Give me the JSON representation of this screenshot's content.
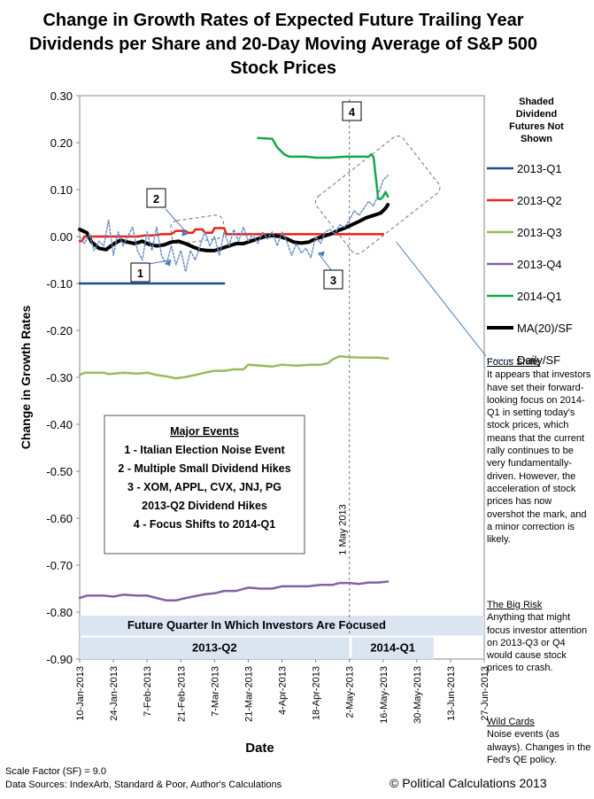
{
  "chart_data": {
    "type": "line",
    "title": "Change in Growth Rates of Expected Future Trailing Year Dividends per Share and 20-Day Moving Average of S&P 500 Stock Prices",
    "xlabel": "Date",
    "ylabel": "Change in Growth Rates",
    "ylim": [
      -0.9,
      0.3
    ],
    "xlim_day": [
      0,
      168
    ],
    "yticks": [
      0.3,
      0.2,
      0.1,
      0.0,
      -0.1,
      -0.2,
      -0.3,
      -0.4,
      -0.5,
      -0.6,
      -0.7,
      -0.8,
      -0.9
    ],
    "ytick_labels": [
      "0.30",
      "0.20",
      "0.10",
      "0.00",
      "-0.10",
      "-0.20",
      "-0.30",
      "-0.40",
      "-0.50",
      "-0.60",
      "-0.70",
      "-0.80",
      "-0.90"
    ],
    "xticks": [
      {
        "day": 0,
        "label": "10-Jan-2013"
      },
      {
        "day": 14,
        "label": "24-Jan-2013"
      },
      {
        "day": 28,
        "label": "7-Feb-2013"
      },
      {
        "day": 42,
        "label": "21-Feb-2013"
      },
      {
        "day": 56,
        "label": "7-Mar-2013"
      },
      {
        "day": 70,
        "label": "21-Mar-2013"
      },
      {
        "day": 84,
        "label": "4-Apr-2013"
      },
      {
        "day": 98,
        "label": "18-Apr-2013"
      },
      {
        "day": 112,
        "label": "2-May-2013"
      },
      {
        "day": 126,
        "label": "16-May-2013"
      },
      {
        "day": 140,
        "label": "30-May-2013"
      },
      {
        "day": 154,
        "label": "13-Jun-2013"
      },
      {
        "day": 168,
        "label": "27-Jun-2013"
      }
    ],
    "series": [
      {
        "name": "2013-Q1",
        "color": "#1f4e8c",
        "width": 2.5,
        "dash": "",
        "points": [
          [
            0,
            -0.1
          ],
          [
            60,
            -0.1
          ]
        ]
      },
      {
        "name": "2013-Q2",
        "color": "#e8231a",
        "width": 2.5,
        "dash": "",
        "points": [
          [
            0,
            -0.01
          ],
          [
            1,
            -0.01
          ],
          [
            2,
            0.0
          ],
          [
            24,
            0.0
          ],
          [
            27,
            0.002
          ],
          [
            30,
            0.002
          ],
          [
            34,
            0.005
          ],
          [
            38,
            0.005
          ],
          [
            40,
            0.012
          ],
          [
            44,
            0.012
          ],
          [
            45,
            0.008
          ],
          [
            47,
            0.008
          ],
          [
            48,
            0.015
          ],
          [
            51,
            0.015
          ],
          [
            52,
            0.008
          ],
          [
            55,
            0.008
          ],
          [
            56,
            0.018
          ],
          [
            60,
            0.018
          ],
          [
            61,
            0.005
          ],
          [
            126,
            0.005
          ]
        ]
      },
      {
        "name": "2013-Q3",
        "color": "#9bbb59",
        "width": 2.5,
        "dash": "",
        "points": [
          [
            0,
            -0.295
          ],
          [
            2,
            -0.29
          ],
          [
            10,
            -0.29
          ],
          [
            12,
            -0.293
          ],
          [
            18,
            -0.29
          ],
          [
            24,
            -0.292
          ],
          [
            28,
            -0.29
          ],
          [
            32,
            -0.295
          ],
          [
            36,
            -0.298
          ],
          [
            40,
            -0.302
          ],
          [
            44,
            -0.299
          ],
          [
            48,
            -0.295
          ],
          [
            52,
            -0.29
          ],
          [
            56,
            -0.286
          ],
          [
            60,
            -0.286
          ],
          [
            64,
            -0.283
          ],
          [
            68,
            -0.283
          ],
          [
            70,
            -0.273
          ],
          [
            75,
            -0.275
          ],
          [
            80,
            -0.277
          ],
          [
            84,
            -0.273
          ],
          [
            90,
            -0.275
          ],
          [
            96,
            -0.273
          ],
          [
            100,
            -0.273
          ],
          [
            103,
            -0.27
          ],
          [
            105,
            -0.262
          ],
          [
            108,
            -0.255
          ],
          [
            112,
            -0.257
          ],
          [
            118,
            -0.258
          ],
          [
            124,
            -0.258
          ],
          [
            128,
            -0.26
          ]
        ]
      },
      {
        "name": "2013-Q4",
        "color": "#8064a2",
        "width": 2.5,
        "dash": "",
        "points": [
          [
            0,
            -0.77
          ],
          [
            3,
            -0.765
          ],
          [
            10,
            -0.765
          ],
          [
            14,
            -0.767
          ],
          [
            18,
            -0.763
          ],
          [
            24,
            -0.765
          ],
          [
            28,
            -0.765
          ],
          [
            32,
            -0.77
          ],
          [
            36,
            -0.775
          ],
          [
            40,
            -0.775
          ],
          [
            44,
            -0.77
          ],
          [
            48,
            -0.766
          ],
          [
            52,
            -0.762
          ],
          [
            56,
            -0.76
          ],
          [
            60,
            -0.755
          ],
          [
            65,
            -0.755
          ],
          [
            70,
            -0.748
          ],
          [
            75,
            -0.75
          ],
          [
            80,
            -0.75
          ],
          [
            84,
            -0.745
          ],
          [
            90,
            -0.745
          ],
          [
            95,
            -0.745
          ],
          [
            100,
            -0.742
          ],
          [
            105,
            -0.742
          ],
          [
            108,
            -0.738
          ],
          [
            112,
            -0.738
          ],
          [
            116,
            -0.74
          ],
          [
            120,
            -0.737
          ],
          [
            124,
            -0.737
          ],
          [
            128,
            -0.735
          ]
        ]
      },
      {
        "name": "2014-Q1",
        "color": "#14a84d",
        "width": 2.5,
        "dash": "",
        "points": [
          [
            74,
            0.21
          ],
          [
            80,
            0.208
          ],
          [
            82,
            0.19
          ],
          [
            85,
            0.175
          ],
          [
            87,
            0.17
          ],
          [
            94,
            0.17
          ],
          [
            98,
            0.168
          ],
          [
            104,
            0.168
          ],
          [
            110,
            0.17
          ],
          [
            116,
            0.17
          ],
          [
            120,
            0.17
          ],
          [
            121,
            0.175
          ],
          [
            122,
            0.17
          ],
          [
            124,
            0.08
          ],
          [
            125,
            0.08
          ],
          [
            126,
            0.085
          ],
          [
            127,
            0.095
          ],
          [
            128,
            0.085
          ]
        ]
      },
      {
        "name": "MA(20)/SF",
        "color": "#000000",
        "width": 4,
        "dash": "",
        "points": [
          [
            0,
            0.015
          ],
          [
            3,
            0.008
          ],
          [
            5,
            -0.012
          ],
          [
            8,
            -0.025
          ],
          [
            11,
            -0.028
          ],
          [
            14,
            -0.016
          ],
          [
            17,
            -0.008
          ],
          [
            20,
            -0.012
          ],
          [
            23,
            -0.015
          ],
          [
            26,
            -0.01
          ],
          [
            29,
            -0.017
          ],
          [
            32,
            -0.02
          ],
          [
            35,
            -0.018
          ],
          [
            38,
            -0.012
          ],
          [
            41,
            -0.01
          ],
          [
            44,
            -0.015
          ],
          [
            47,
            -0.022
          ],
          [
            50,
            -0.028
          ],
          [
            53,
            -0.03
          ],
          [
            56,
            -0.03
          ],
          [
            59,
            -0.025
          ],
          [
            62,
            -0.02
          ],
          [
            65,
            -0.015
          ],
          [
            68,
            -0.015
          ],
          [
            71,
            -0.01
          ],
          [
            74,
            -0.005
          ],
          [
            77,
            0.0
          ],
          [
            80,
            0.002
          ],
          [
            83,
            0.0
          ],
          [
            86,
            -0.005
          ],
          [
            89,
            -0.012
          ],
          [
            92,
            -0.014
          ],
          [
            95,
            -0.012
          ],
          [
            98,
            -0.005
          ],
          [
            101,
            0.0
          ],
          [
            104,
            0.005
          ],
          [
            107,
            0.012
          ],
          [
            110,
            0.018
          ],
          [
            113,
            0.025
          ],
          [
            116,
            0.032
          ],
          [
            119,
            0.04
          ],
          [
            122,
            0.045
          ],
          [
            125,
            0.05
          ],
          [
            127,
            0.06
          ],
          [
            128,
            0.068
          ]
        ]
      },
      {
        "name": "Daily/SF",
        "color": "#6b8fc4",
        "width": 1.5,
        "dash": "2,2",
        "points": [
          [
            0,
            0.0
          ],
          [
            2,
            -0.015
          ],
          [
            4,
            0.005
          ],
          [
            6,
            -0.03
          ],
          [
            8,
            -0.01
          ],
          [
            10,
            -0.02
          ],
          [
            12,
            0.035
          ],
          [
            14,
            -0.04
          ],
          [
            16,
            0.01
          ],
          [
            18,
            -0.02
          ],
          [
            20,
            0.0
          ],
          [
            22,
            0.02
          ],
          [
            24,
            -0.03
          ],
          [
            26,
            -0.05
          ],
          [
            28,
            0.01
          ],
          [
            30,
            -0.03
          ],
          [
            32,
            0.02
          ],
          [
            34,
            -0.04
          ],
          [
            36,
            -0.06
          ],
          [
            38,
            -0.02
          ],
          [
            40,
            -0.06
          ],
          [
            42,
            -0.03
          ],
          [
            44,
            -0.075
          ],
          [
            46,
            -0.03
          ],
          [
            48,
            -0.05
          ],
          [
            50,
            -0.02
          ],
          [
            52,
            0.01
          ],
          [
            54,
            -0.02
          ],
          [
            56,
            0.0
          ],
          [
            58,
            -0.04
          ],
          [
            60,
            0.01
          ],
          [
            62,
            -0.02
          ],
          [
            64,
            0.015
          ],
          [
            66,
            -0.01
          ],
          [
            68,
            0.02
          ],
          [
            70,
            -0.01
          ],
          [
            72,
            0.005
          ],
          [
            74,
            -0.015
          ],
          [
            76,
            0.01
          ],
          [
            78,
            -0.005
          ],
          [
            80,
            0.01
          ],
          [
            82,
            -0.02
          ],
          [
            84,
            0.01
          ],
          [
            86,
            -0.01
          ],
          [
            88,
            -0.04
          ],
          [
            90,
            -0.015
          ],
          [
            92,
            -0.035
          ],
          [
            94,
            -0.025
          ],
          [
            96,
            -0.045
          ],
          [
            98,
            0.0
          ],
          [
            100,
            -0.015
          ],
          [
            102,
            0.01
          ],
          [
            104,
            0.015
          ],
          [
            106,
            0.005
          ],
          [
            108,
            0.025
          ],
          [
            110,
            0.02
          ],
          [
            112,
            0.035
          ],
          [
            114,
            0.055
          ],
          [
            116,
            0.045
          ],
          [
            118,
            0.06
          ],
          [
            120,
            0.075
          ],
          [
            122,
            0.065
          ],
          [
            124,
            0.09
          ],
          [
            126,
            0.12
          ],
          [
            128,
            0.13
          ]
        ]
      }
    ],
    "legend_header": [
      "Shaded",
      "Dividend",
      "Futures Not",
      "Shown"
    ],
    "vline": {
      "day": 112,
      "label": "1 May 2013"
    },
    "events_box": {
      "title": "Major Events",
      "lines": [
        "1 - Italian Election Noise Event",
        "2 - Multiple Small Dividend Hikes",
        "3 - XOM, APPL, CVX, JNJ, PG",
        "2013-Q2 Dividend Hikes",
        "4 - Focus Shifts to 2014-Q1"
      ]
    },
    "callouts": [
      {
        "label": "1",
        "target_day": 38,
        "target_y": -0.05
      },
      {
        "label": "2",
        "target_day": 45,
        "target_y": 0.005
      },
      {
        "label": "3",
        "target_day": 99,
        "target_y": -0.035
      },
      {
        "label": "4",
        "target_day": 115,
        "target_y": 0.25
      }
    ],
    "focus_band": {
      "title": "Future Quarter In Which Investors Are Focused",
      "segments": [
        {
          "label": "2013-Q2",
          "start_day": 0,
          "end_day": 112
        },
        {
          "label": "2014-Q1",
          "start_day": 113,
          "end_day": 147
        }
      ]
    }
  },
  "notes": [
    {
      "heading": "Focus Shifts",
      "body": "It appears that investors have set their forward-looking focus on 2014-Q1 in setting today's stock prices, which means that the current rally continues to be very fundamentally-driven.  However, the acceleration of stock prices  has now overshot the mark, and a minor correction is likely."
    },
    {
      "heading": "The Big Risk",
      "body": "Anything that might focus investor attention on 2013-Q3 or Q4 would cause stock prices to crash."
    },
    {
      "heading": "Wild Cards",
      "body": "Noise events (as always).  Changes in the Fed's QE policy."
    }
  ],
  "footer": {
    "scale_factor": "Scale Factor (SF) = 9.0",
    "sources": "Data Sources: IndexArb, Standard & Poor, Author's Calculations",
    "copyright": "© Political Calculations 2013"
  }
}
